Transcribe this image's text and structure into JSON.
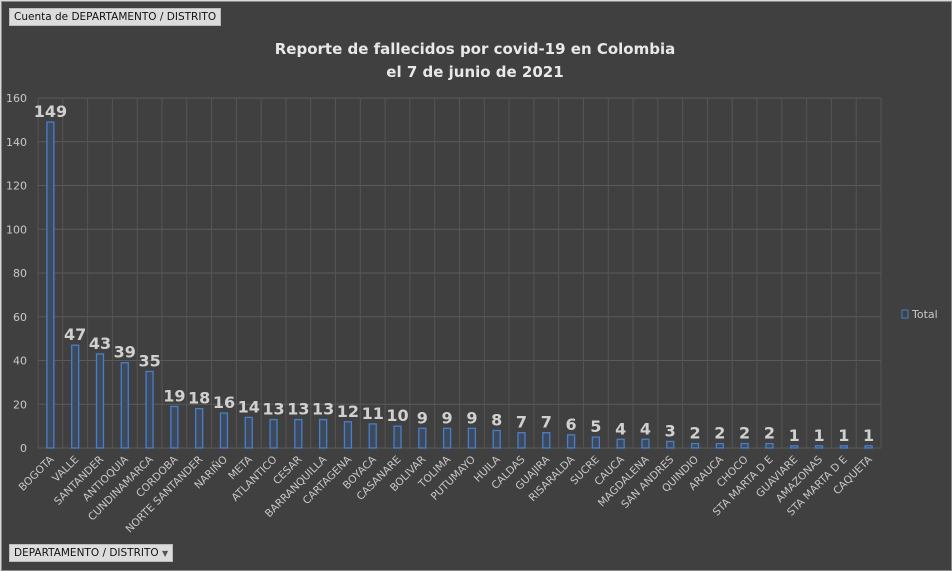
{
  "pivot": {
    "value_field": "Cuenta de DEPARTAMENTO  / DISTRITO",
    "axis_field": "DEPARTAMENTO  / DISTRITO"
  },
  "colors": {
    "background": "#404040",
    "bar": "#4a7ec8",
    "text": "#c8c8c8"
  },
  "chart_data": {
    "type": "bar",
    "title": "Reporte de fallecidos por covid-19 en Colombia",
    "subtitle": "el 7 de junio de 2021",
    "categories": [
      "BOGOTA",
      "VALLE",
      "SANTANDER",
      "ANTIOQUIA",
      "CUNDINAMARCA",
      "CORDOBA",
      "NORTE SANTANDER",
      "NARIÑO",
      "META",
      "ATLANTICO",
      "CESAR",
      "BARRANQUILLA",
      "CARTAGENA",
      "BOYACA",
      "CASANARE",
      "BOLIVAR",
      "TOLIMA",
      "PUTUMAYO",
      "HUILA",
      "CALDAS",
      "GUAJIRA",
      "RISARALDA",
      "SUCRE",
      "CAUCA",
      "MAGDALENA",
      "SAN ANDRES",
      "QUINDIO",
      "ARAUCA",
      "CHOCO",
      "STA MARTA D E",
      "GUAVIARE",
      "AMAZONAS",
      "STA MARTA D E",
      "CAQUETA"
    ],
    "series": [
      {
        "name": "Total",
        "values": [
          149,
          47,
          43,
          39,
          35,
          19,
          18,
          16,
          14,
          13,
          13,
          13,
          12,
          11,
          10,
          9,
          9,
          9,
          8,
          7,
          7,
          6,
          5,
          4,
          4,
          3,
          2,
          2,
          2,
          2,
          1,
          1,
          1,
          1
        ]
      }
    ],
    "ylim": [
      0,
      160
    ],
    "yticks": [
      0,
      20,
      40,
      60,
      80,
      100,
      120,
      140,
      160
    ],
    "grid": true,
    "legend": "right",
    "data_labels": true
  }
}
